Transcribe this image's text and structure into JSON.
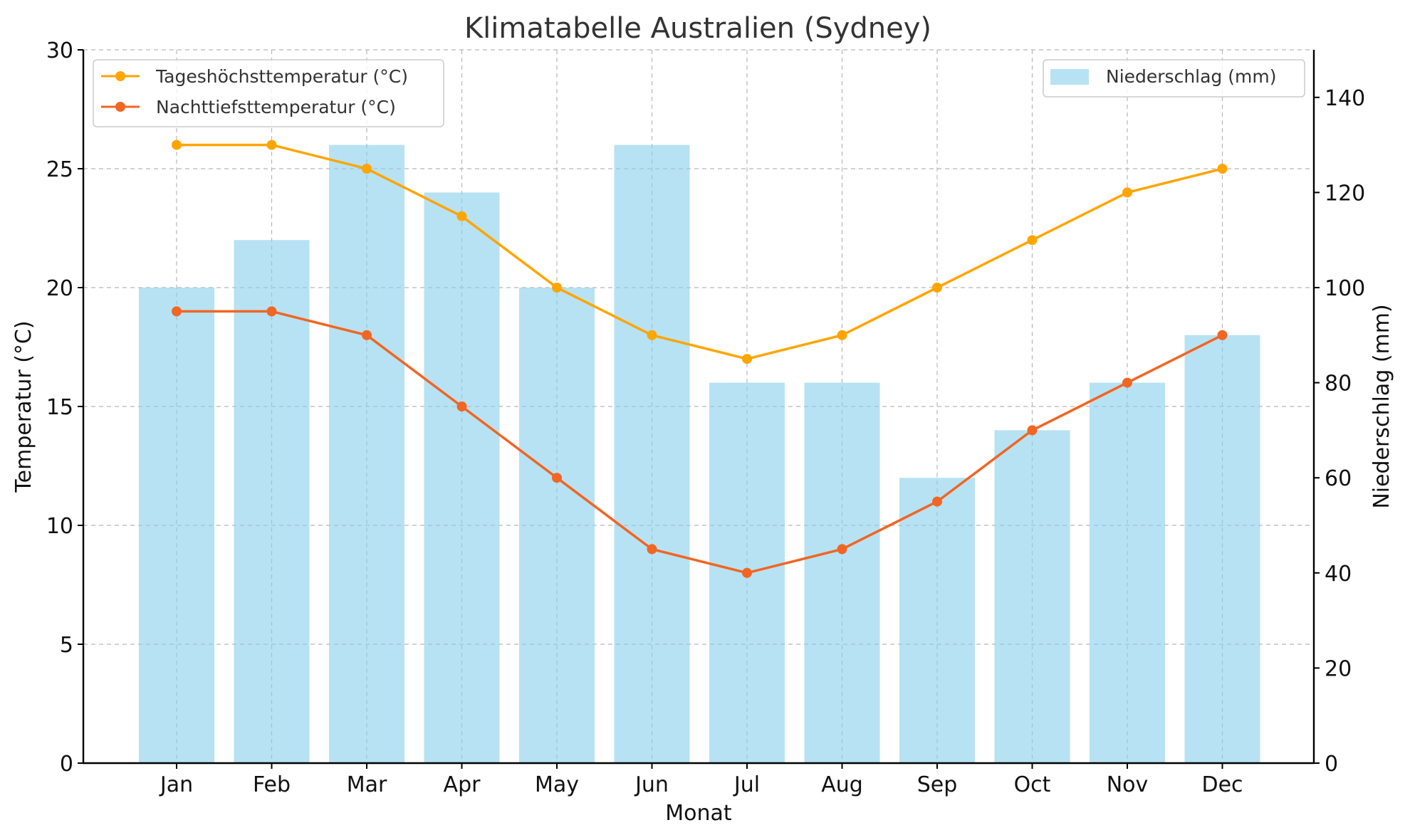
{
  "chart_data": {
    "type": "bar",
    "title": "Klimatabelle Australien (Sydney)",
    "xlabel": "Monat",
    "ylabel": "Temperatur (°C)",
    "y2label": "Niederschlag (mm)",
    "categories": [
      "Jan",
      "Feb",
      "Mar",
      "Apr",
      "May",
      "Jun",
      "Jul",
      "Aug",
      "Sep",
      "Oct",
      "Nov",
      "Dec"
    ],
    "ylim": [
      0,
      30
    ],
    "yticks": [
      0,
      5,
      10,
      15,
      20,
      25,
      30
    ],
    "y2lim": [
      0,
      150
    ],
    "y2ticks": [
      0,
      20,
      40,
      60,
      80,
      100,
      120,
      140
    ],
    "grid": true,
    "bar_series": {
      "name": "Niederschlag (mm)",
      "axis": "right",
      "color": "#87ceeb",
      "values": [
        100,
        110,
        130,
        120,
        100,
        130,
        80,
        80,
        60,
        70,
        80,
        90
      ]
    },
    "line_series": [
      {
        "name": "Tageshöchsttemperatur (°C)",
        "axis": "left",
        "color": "#ffa500",
        "values": [
          26,
          26,
          25,
          23,
          20,
          18,
          17,
          18,
          20,
          22,
          24,
          25
        ]
      },
      {
        "name": "Nachttiefsttemperatur (°C)",
        "axis": "left",
        "color": "#f26522",
        "values": [
          19,
          19,
          18,
          15,
          12,
          9,
          8,
          9,
          11,
          14,
          16,
          18
        ]
      }
    ],
    "legend_left_position": "upper-left",
    "legend_right_position": "upper-right"
  }
}
